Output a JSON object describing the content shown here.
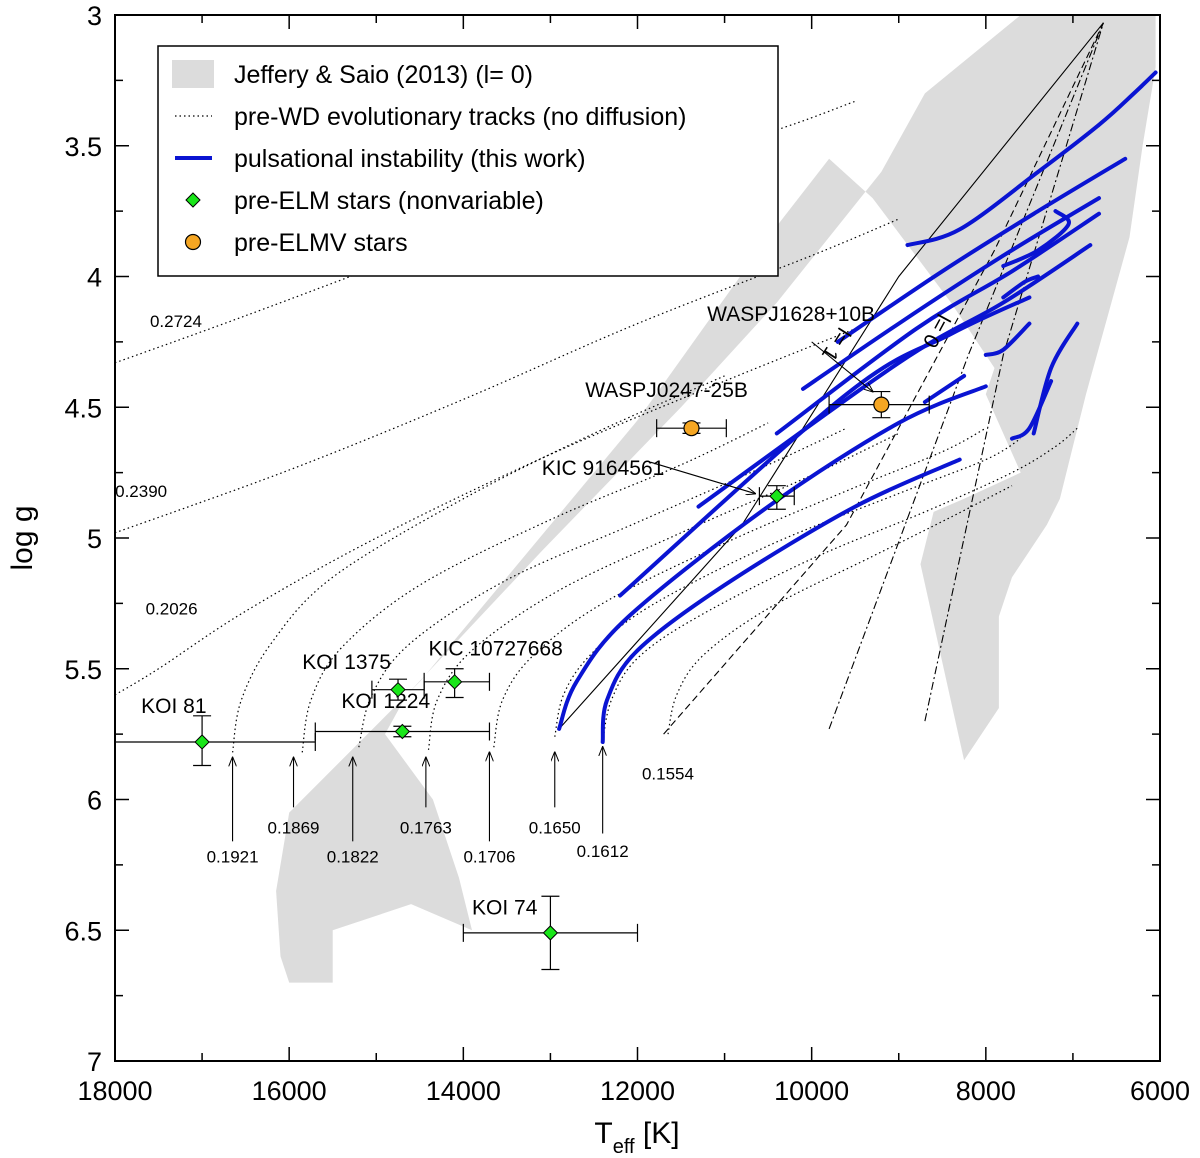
{
  "chart_data": {
    "type": "scatter",
    "xlabel": "T",
    "xlabel_sub": "eff",
    "xlabel_unit": " [K]",
    "ylabel": "log g",
    "xlim": [
      18000,
      6000
    ],
    "ylim": [
      3,
      7
    ],
    "x_ticks": [
      {
        "v": 18000,
        "t": "18000"
      },
      {
        "v": 16000,
        "t": "16000"
      },
      {
        "v": 14000,
        "t": "14000"
      },
      {
        "v": 12000,
        "t": "12000"
      },
      {
        "v": 10000,
        "t": "10000"
      },
      {
        "v": 8000,
        "t": "8000"
      },
      {
        "v": 6000,
        "t": "6000"
      }
    ],
    "y_ticks": [
      {
        "v": 3,
        "t": "3"
      },
      {
        "v": 3.5,
        "t": "3.5"
      },
      {
        "v": 4,
        "t": "4"
      },
      {
        "v": 4.5,
        "t": "4.5"
      },
      {
        "v": 5,
        "t": "5"
      },
      {
        "v": 5.5,
        "t": "5.5"
      },
      {
        "v": 6,
        "t": "6"
      },
      {
        "v": 6.5,
        "t": "6.5"
      },
      {
        "v": 7,
        "t": "7"
      }
    ],
    "legend": {
      "position": "top-left",
      "entries": [
        {
          "kind": "region",
          "label": "Jeffery & Saio (2013) (l= 0)"
        },
        {
          "kind": "dotted",
          "label": "pre-WD evolutionary tracks (no diffusion)"
        },
        {
          "kind": "blue",
          "label": "pulsational instability (this work)"
        },
        {
          "kind": "diamond",
          "label": "pre-ELM stars (nonvariable)"
        },
        {
          "kind": "circle",
          "label": "pre-ELMV stars"
        }
      ]
    },
    "colors": {
      "region": "#dcdcdc",
      "blue": "#0a14d2",
      "diamond": "#19e619",
      "circle": "#f5a623"
    },
    "instability_region": [
      [
        6650,
        3.0
      ],
      [
        6050,
        3.0
      ],
      [
        6050,
        3.2
      ],
      [
        6200,
        3.5
      ],
      [
        6350,
        3.85
      ],
      [
        6600,
        4.15
      ],
      [
        6850,
        4.45
      ],
      [
        7000,
        4.65
      ],
      [
        7150,
        4.85
      ],
      [
        7300,
        4.95
      ],
      [
        7500,
        5.05
      ],
      [
        7700,
        5.15
      ],
      [
        7850,
        5.3
      ],
      [
        7850,
        5.65
      ],
      [
        8250,
        5.85
      ],
      [
        8750,
        5.1
      ],
      [
        8600,
        4.9
      ],
      [
        8250,
        4.85
      ],
      [
        7600,
        4.75
      ],
      [
        8000,
        4.45
      ],
      [
        7900,
        4.35
      ],
      [
        8400,
        4.1
      ],
      [
        9300,
        3.7
      ],
      [
        9800,
        3.55
      ],
      [
        10500,
        3.85
      ],
      [
        12000,
        4.55
      ],
      [
        13500,
        5.15
      ],
      [
        14500,
        5.55
      ],
      [
        16000,
        6.05
      ],
      [
        16150,
        6.35
      ],
      [
        16100,
        6.6
      ],
      [
        16000,
        6.7
      ],
      [
        15500,
        6.7
      ],
      [
        15500,
        6.5
      ],
      [
        14600,
        6.4
      ],
      [
        13900,
        6.5
      ],
      [
        14050,
        6.3
      ],
      [
        14350,
        6.0
      ],
      [
        14900,
        5.75
      ],
      [
        14650,
        5.6
      ],
      [
        13100,
        5.05
      ],
      [
        11500,
        4.5
      ],
      [
        10400,
        4.1
      ],
      [
        9200,
        3.6
      ],
      [
        8700,
        3.3
      ],
      [
        7600,
        3.0
      ]
    ],
    "tracks": [
      {
        "mass": "0.2724",
        "points": [
          [
            18000,
            4.33
          ],
          [
            16500,
            4.15
          ],
          [
            14500,
            3.9
          ],
          [
            12500,
            3.65
          ],
          [
            10500,
            3.45
          ],
          [
            9500,
            3.33
          ]
        ]
      },
      {
        "mass": "0.2390",
        "points": [
          [
            18000,
            4.98
          ],
          [
            16000,
            4.74
          ],
          [
            14000,
            4.47
          ],
          [
            12000,
            4.18
          ],
          [
            10000,
            3.92
          ],
          [
            9000,
            3.78
          ]
        ]
      },
      {
        "mass": "0.2026",
        "points": [
          [
            18000,
            5.6
          ],
          [
            17500,
            5.5
          ],
          [
            16500,
            5.28
          ],
          [
            15000,
            5.0
          ],
          [
            13000,
            4.68
          ],
          [
            11000,
            4.4
          ],
          [
            9500,
            4.2
          ]
        ]
      },
      {
        "mass": "0.1921",
        "points": [
          [
            16650,
            5.82
          ],
          [
            16550,
            5.62
          ],
          [
            16200,
            5.4
          ],
          [
            15500,
            5.15
          ],
          [
            14000,
            4.85
          ],
          [
            12500,
            4.6
          ],
          [
            11000,
            4.38
          ]
        ]
      },
      {
        "mass": "0.1869",
        "points": [
          [
            15850,
            5.82
          ],
          [
            15750,
            5.62
          ],
          [
            15400,
            5.42
          ],
          [
            14500,
            5.18
          ],
          [
            13000,
            4.93
          ],
          [
            11500,
            4.72
          ],
          [
            10500,
            4.56
          ]
        ]
      },
      {
        "mass": "0.1822",
        "points": [
          [
            15200,
            5.8
          ],
          [
            15050,
            5.6
          ],
          [
            14600,
            5.4
          ],
          [
            13500,
            5.16
          ],
          [
            12000,
            4.94
          ],
          [
            10500,
            4.72
          ],
          [
            9600,
            4.58
          ]
        ]
      },
      {
        "mass": "0.1763",
        "points": [
          [
            14400,
            5.81
          ],
          [
            14300,
            5.62
          ],
          [
            13900,
            5.43
          ],
          [
            12900,
            5.2
          ],
          [
            11500,
            4.98
          ],
          [
            10000,
            4.76
          ],
          [
            9000,
            4.6
          ]
        ]
      },
      {
        "mass": "0.1706",
        "points": [
          [
            13650,
            5.8
          ],
          [
            13550,
            5.62
          ],
          [
            13200,
            5.45
          ],
          [
            12400,
            5.25
          ],
          [
            11000,
            5.02
          ],
          [
            9600,
            4.82
          ],
          [
            8500,
            4.67
          ],
          [
            8000,
            4.58
          ]
        ]
      },
      {
        "mass": "0.1650",
        "points": [
          [
            12950,
            5.76
          ],
          [
            12850,
            5.6
          ],
          [
            12550,
            5.45
          ],
          [
            11900,
            5.27
          ],
          [
            10500,
            5.03
          ],
          [
            9000,
            4.83
          ],
          [
            8000,
            4.7
          ],
          [
            7600,
            4.62
          ]
        ]
      },
      {
        "mass": "0.1612",
        "points": [
          [
            12400,
            5.78
          ],
          [
            12300,
            5.62
          ],
          [
            12000,
            5.46
          ],
          [
            11300,
            5.3
          ],
          [
            10000,
            5.08
          ],
          [
            8700,
            4.9
          ],
          [
            7700,
            4.75
          ],
          [
            7200,
            4.65
          ],
          [
            6950,
            4.58
          ]
        ]
      },
      {
        "mass": "0.1554",
        "points": [
          [
            11650,
            5.75
          ],
          [
            11550,
            5.6
          ],
          [
            11250,
            5.45
          ],
          [
            10500,
            5.27
          ],
          [
            9300,
            5.07
          ],
          [
            8400,
            4.92
          ],
          [
            7700,
            4.8
          ]
        ]
      }
    ],
    "instability_segments": [
      [
        [
          6050,
          3.22
        ],
        [
          6300,
          3.3
        ],
        [
          6700,
          3.42
        ],
        [
          7400,
          3.6
        ],
        [
          8300,
          3.82
        ],
        [
          8900,
          3.88
        ]
      ],
      [
        [
          6400,
          3.55
        ],
        [
          7400,
          3.75
        ],
        [
          8500,
          3.98
        ],
        [
          9700,
          4.25
        ]
      ],
      [
        [
          6700,
          3.7
        ],
        [
          7800,
          3.92
        ],
        [
          9000,
          4.18
        ],
        [
          10100,
          4.43
        ]
      ],
      [
        [
          6700,
          3.76
        ],
        [
          7700,
          3.98
        ],
        [
          8800,
          4.2
        ],
        [
          10400,
          4.6
        ]
      ],
      [
        [
          6800,
          3.88
        ],
        [
          7800,
          4.1
        ],
        [
          9000,
          4.33
        ],
        [
          11300,
          4.88
        ]
      ],
      [
        [
          7500,
          4.08
        ],
        [
          8400,
          4.22
        ],
        [
          9600,
          4.45
        ],
        [
          12200,
          5.22
        ]
      ],
      [
        [
          8000,
          4.42
        ],
        [
          9000,
          4.56
        ],
        [
          10500,
          4.88
        ],
        [
          12100,
          5.3
        ],
        [
          12700,
          5.55
        ],
        [
          12900,
          5.73
        ]
      ],
      [
        [
          8300,
          4.7
        ],
        [
          9500,
          4.88
        ],
        [
          11000,
          5.18
        ],
        [
          12000,
          5.43
        ],
        [
          12350,
          5.62
        ],
        [
          12400,
          5.78
        ]
      ],
      [
        [
          8250,
          4.38
        ],
        [
          8700,
          4.48
        ]
      ],
      [
        [
          7200,
          3.75
        ],
        [
          7050,
          3.8
        ],
        [
          7400,
          3.9
        ],
        [
          7800,
          3.96
        ]
      ],
      [
        [
          7400,
          4.0
        ],
        [
          7550,
          4.02
        ],
        [
          7800,
          4.08
        ]
      ],
      [
        [
          7500,
          4.18
        ],
        [
          7800,
          4.28
        ],
        [
          8000,
          4.3
        ]
      ],
      [
        [
          6950,
          4.18
        ],
        [
          7250,
          4.35
        ],
        [
          7450,
          4.6
        ]
      ],
      [
        [
          7250,
          4.4
        ],
        [
          7500,
          4.58
        ],
        [
          7700,
          4.62
        ]
      ]
    ],
    "aux_lines": [
      {
        "style": "solid",
        "label": "l= 1",
        "points": [
          [
            12900,
            5.73
          ],
          [
            10800,
            4.95
          ],
          [
            9000,
            4.0
          ],
          [
            6650,
            3.03
          ]
        ]
      },
      {
        "style": "dashed",
        "label": "l= 0",
        "points": [
          [
            11700,
            5.75
          ],
          [
            9600,
            4.95
          ],
          [
            7900,
            3.9
          ],
          [
            6650,
            3.03
          ]
        ]
      },
      {
        "style": "dashdot",
        "label": "",
        "points": [
          [
            8700,
            5.7
          ],
          [
            7800,
            4.3
          ],
          [
            6650,
            3.03
          ]
        ]
      },
      {
        "style": "dashdot",
        "label": "",
        "points": [
          [
            9800,
            5.73
          ],
          [
            8200,
            4.3
          ],
          [
            6650,
            3.03
          ]
        ]
      }
    ],
    "stars": [
      {
        "name": "KOI 81",
        "type": "diamond",
        "teff": 17000,
        "logg": 5.78,
        "xerr": [
          18000,
          15700
        ],
        "yerr": [
          5.68,
          5.87
        ],
        "label_pos": [
          17700,
          5.67
        ]
      },
      {
        "name": "KOI 1224",
        "type": "diamond",
        "teff": 14700,
        "logg": 5.74,
        "xerr": [
          15700,
          13700
        ],
        "yerr": [
          5.72,
          5.76
        ],
        "label_pos": [
          15400,
          5.65
        ]
      },
      {
        "name": "KOI 1375",
        "type": "diamond",
        "teff": 14750,
        "logg": 5.58,
        "xerr": [
          15050,
          14450
        ],
        "yerr": [
          5.54,
          5.62
        ],
        "label_pos": [
          15850,
          5.5
        ]
      },
      {
        "name": "KIC 10727668",
        "type": "diamond",
        "teff": 14100,
        "logg": 5.55,
        "xerr": [
          14450,
          13700
        ],
        "yerr": [
          5.5,
          5.61
        ],
        "label_pos": [
          14400,
          5.45
        ]
      },
      {
        "name": "KOI 74",
        "type": "diamond",
        "teff": 13000,
        "logg": 6.51,
        "xerr": [
          14000,
          12000
        ],
        "yerr": [
          6.37,
          6.65
        ],
        "label_pos": [
          13900,
          6.44
        ]
      },
      {
        "name": "KIC 9164561",
        "type": "diamond",
        "teff": 10400,
        "logg": 4.84,
        "xerr": [
          10600,
          10200
        ],
        "yerr": [
          4.8,
          4.89
        ],
        "label_pos": [
          13100,
          4.76
        ],
        "arrow": [
          [
            11850,
            4.71
          ],
          [
            10650,
            4.83
          ]
        ]
      },
      {
        "name": "WASPJ0247-25B",
        "type": "circle",
        "teff": 11380,
        "logg": 4.58,
        "xerr": [
          11780,
          10980
        ],
        "yerr": [
          4.56,
          4.6
        ],
        "label_pos": [
          12600,
          4.46
        ]
      },
      {
        "name": "WASPJ1628+10B",
        "type": "circle",
        "teff": 9200,
        "logg": 4.49,
        "xerr": [
          9800,
          8650
        ],
        "yerr": [
          4.44,
          4.54
        ],
        "label_pos": [
          11200,
          4.17
        ],
        "arrow": [
          [
            10000,
            4.25
          ],
          [
            9300,
            4.44
          ]
        ]
      }
    ],
    "mass_arrows": [
      {
        "label": "0.1921",
        "x": 16650,
        "tip": 5.84,
        "base": 6.16,
        "label_x": 16650,
        "label_y": 6.21
      },
      {
        "label": "0.1869",
        "x": 15950,
        "tip": 5.84,
        "base": 6.03,
        "label_x": 15950,
        "label_y": 6.1
      },
      {
        "label": "0.1822",
        "x": 15270,
        "tip": 5.84,
        "base": 6.16,
        "label_x": 15270,
        "label_y": 6.21
      },
      {
        "label": "0.1763",
        "x": 14430,
        "tip": 5.84,
        "base": 6.03,
        "label_x": 14430,
        "label_y": 6.1
      },
      {
        "label": "0.1706",
        "x": 13700,
        "tip": 5.82,
        "base": 6.16,
        "label_x": 13700,
        "label_y": 6.21
      },
      {
        "label": "0.1650",
        "x": 12950,
        "tip": 5.82,
        "base": 6.03,
        "label_x": 12950,
        "label_y": 6.1
      },
      {
        "label": "0.1612",
        "x": 12400,
        "tip": 5.8,
        "base": 6.13,
        "label_x": 12400,
        "label_y": 6.19
      }
    ],
    "track_labels": [
      {
        "text": "0.2724",
        "x": 17300,
        "y": 4.17
      },
      {
        "text": "0.2390",
        "x": 17700,
        "y": 4.82
      },
      {
        "text": "0.2026",
        "x": 17350,
        "y": 5.27
      },
      {
        "text": "0.1554",
        "x": 11650,
        "y": 5.9
      }
    ]
  }
}
